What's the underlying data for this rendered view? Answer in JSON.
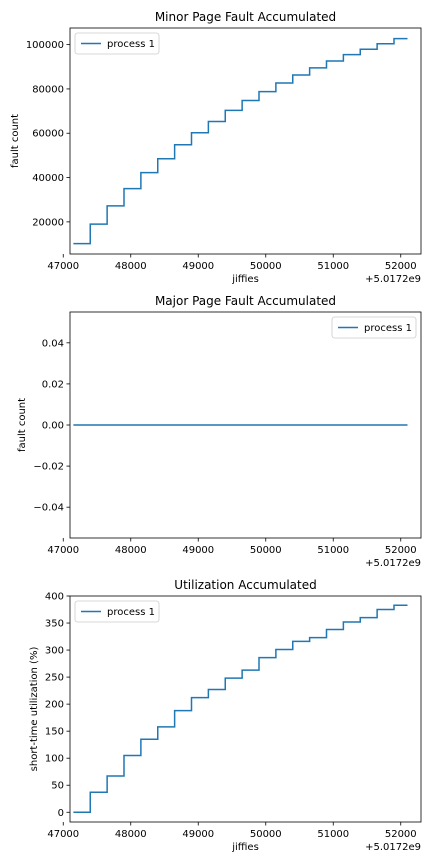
{
  "chart_data": [
    {
      "type": "line",
      "title": "Minor Page Fault Accumulated",
      "xlabel": "jiffies",
      "ylabel": "fault count",
      "x_offset_label": "+5.0172e9",
      "xlim": [
        47100,
        52300
      ],
      "ylim": [
        5500,
        107500
      ],
      "xticks": [
        47000,
        48000,
        49000,
        50000,
        51000,
        52000
      ],
      "xtick_labels": [
        "47000",
        "48000",
        "49000",
        "50000",
        "51000",
        "52000"
      ],
      "yticks": [
        20000,
        40000,
        60000,
        80000,
        100000
      ],
      "ytick_labels": [
        "20000",
        "40000",
        "60000",
        "80000",
        "100000"
      ],
      "legend_loc": "upper left",
      "series": [
        {
          "name": "process 1",
          "color": "#1f77b4",
          "style": "step",
          "x": [
            47150,
            47400,
            47650,
            47900,
            48150,
            48400,
            48650,
            48900,
            49150,
            49400,
            49650,
            49900,
            50150,
            50400,
            50650,
            50900,
            51150,
            51400,
            51650,
            51900,
            52100
          ],
          "y": [
            10200,
            19000,
            27200,
            35000,
            42200,
            48500,
            54800,
            60200,
            65300,
            70300,
            74800,
            78800,
            82700,
            86300,
            89500,
            92600,
            95500,
            97900,
            100400,
            102700,
            102700
          ]
        }
      ]
    },
    {
      "type": "line",
      "title": "Major Page Fault Accumulated",
      "xlabel": "",
      "ylabel": "fault count",
      "x_offset_label": "+5.0172e9",
      "xlim": [
        47100,
        52300
      ],
      "ylim": [
        -0.055,
        0.055
      ],
      "xticks": [
        47000,
        48000,
        49000,
        50000,
        51000,
        52000
      ],
      "xtick_labels": [
        "47000",
        "48000",
        "49000",
        "50000",
        "51000",
        "52000"
      ],
      "yticks": [
        -0.04,
        -0.02,
        0.0,
        0.02,
        0.04
      ],
      "ytick_labels": [
        "−0.04",
        "−0.02",
        "0.00",
        "0.02",
        "0.04"
      ],
      "legend_loc": "upper right",
      "series": [
        {
          "name": "process 1",
          "color": "#1f77b4",
          "style": "line",
          "x": [
            47150,
            52100
          ],
          "y": [
            0,
            0
          ]
        }
      ]
    },
    {
      "type": "line",
      "title": "Utilization Accumulated",
      "xlabel": "jiffies",
      "ylabel": "short-time utilization (%)",
      "x_offset_label": "+5.0172e9",
      "xlim": [
        47100,
        52300
      ],
      "ylim": [
        -18,
        400
      ],
      "xticks": [
        47000,
        48000,
        49000,
        50000,
        51000,
        52000
      ],
      "xtick_labels": [
        "47000",
        "48000",
        "49000",
        "50000",
        "51000",
        "52000"
      ],
      "yticks": [
        0,
        50,
        100,
        150,
        200,
        250,
        300,
        350,
        400
      ],
      "ytick_labels": [
        "0",
        "50",
        "100",
        "150",
        "200",
        "250",
        "300",
        "350",
        "400"
      ],
      "legend_loc": "upper left",
      "series": [
        {
          "name": "process 1",
          "color": "#1f77b4",
          "style": "step",
          "x": [
            47150,
            47400,
            47650,
            47900,
            48150,
            48400,
            48650,
            48900,
            49150,
            49400,
            49650,
            49900,
            50150,
            50400,
            50650,
            50900,
            51150,
            51400,
            51650,
            51900,
            52100
          ],
          "y": [
            0,
            37,
            67,
            105,
            135,
            158,
            188,
            212,
            227,
            248,
            263,
            286,
            301,
            316,
            323,
            338,
            352,
            360,
            375,
            383,
            383
          ]
        }
      ]
    }
  ]
}
